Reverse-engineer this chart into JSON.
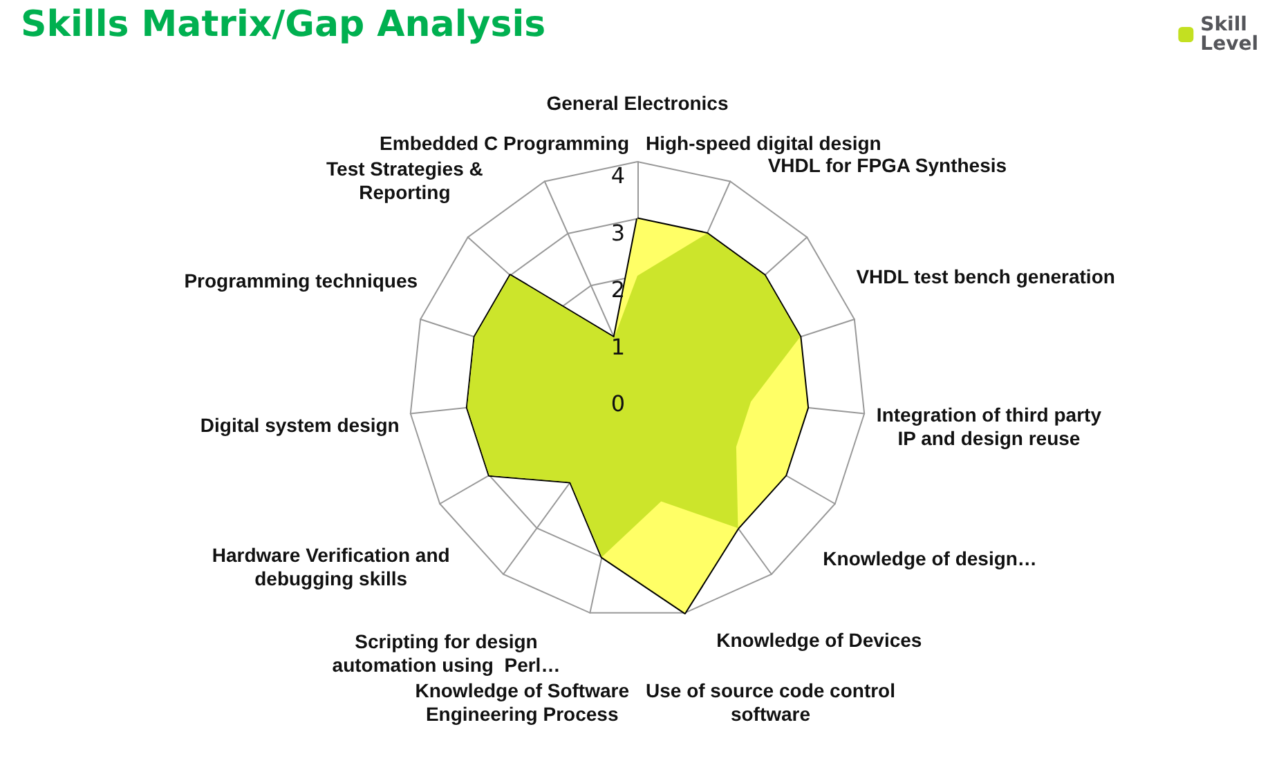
{
  "chart_data": {
    "type": "radar",
    "title": "Skills Matrix/Gap Analysis",
    "categories": [
      "General Electronics",
      "High-speed digital design",
      "VHDL for FPGA Synthesis",
      "VHDL test bench generation",
      "Integration of third party IP and design reuse",
      "Knowledge of design…",
      "Knowledge of Devices",
      "Use of source code control software",
      "Knowledge of Software Engineering Process",
      "Scripting for design automation using  Perl…",
      "Hardware Verification and debugging skills",
      "Digital system design",
      "Programming techniques",
      "Test Strategies & Reporting",
      "Embedded C Programming"
    ],
    "series": [
      {
        "color": "#ffff66",
        "values": [
          3,
          3,
          3,
          3,
          3,
          3,
          3,
          4,
          3,
          2,
          3,
          3,
          3,
          3,
          1
        ]
      },
      {
        "name": "Skill Level",
        "color": "#c3e021",
        "values": [
          2,
          3,
          3,
          3,
          2,
          2,
          3,
          2,
          3,
          2,
          3,
          3,
          3,
          3,
          1
        ]
      }
    ],
    "ylim": [
      0,
      4
    ],
    "yticks": [
      0,
      1,
      2,
      3,
      4
    ],
    "legend": "top right",
    "grid": true
  }
}
